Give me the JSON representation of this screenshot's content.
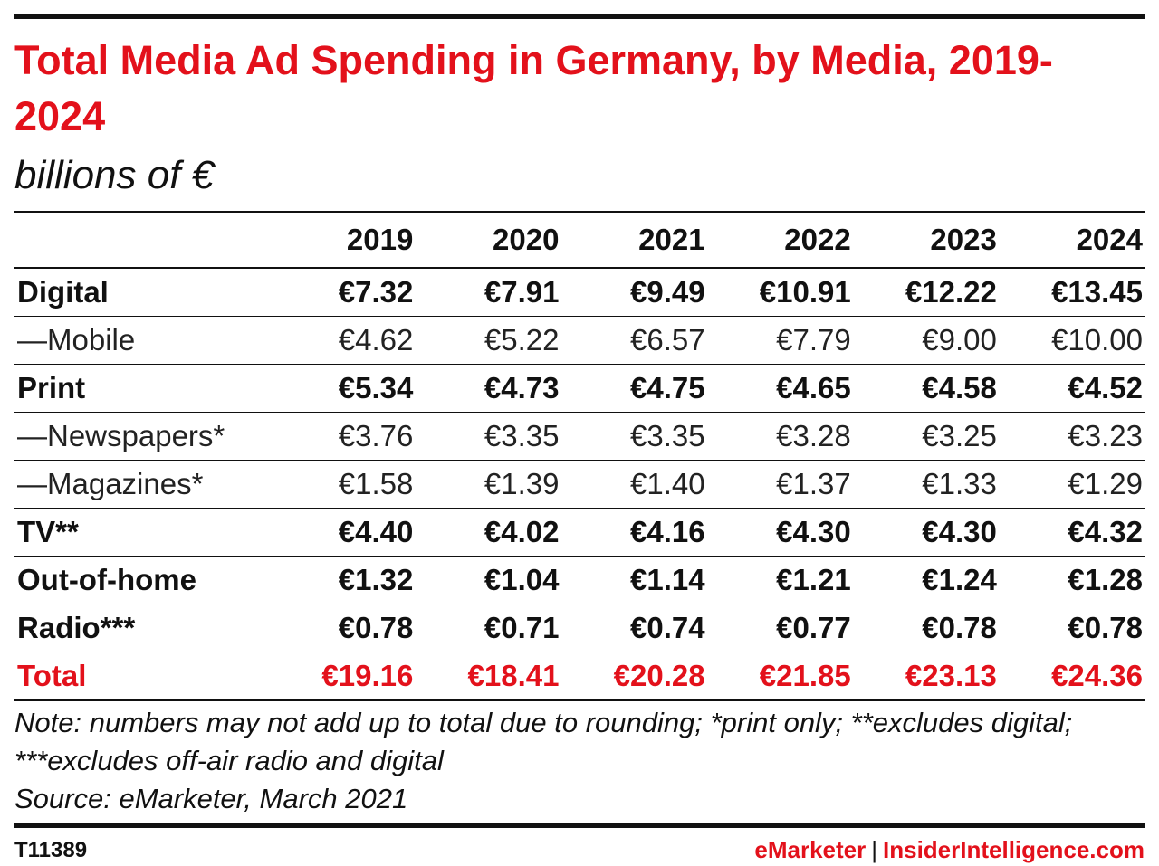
{
  "chart_data": {
    "type": "table",
    "title": "Total Media Ad Spending in Germany, by Media, 2019-2024",
    "subtitle": "billions of €",
    "columns": [
      "2019",
      "2020",
      "2021",
      "2022",
      "2023",
      "2024"
    ],
    "rows": [
      {
        "label": "Digital",
        "style": "bold",
        "values": [
          "€7.32",
          "€7.91",
          "€9.49",
          "€10.91",
          "€12.22",
          "€13.45"
        ]
      },
      {
        "label": "—Mobile",
        "style": "light",
        "values": [
          "€4.62",
          "€5.22",
          "€6.57",
          "€7.79",
          "€9.00",
          "€10.00"
        ]
      },
      {
        "label": "Print",
        "style": "bold",
        "values": [
          "€5.34",
          "€4.73",
          "€4.75",
          "€4.65",
          "€4.58",
          "€4.52"
        ]
      },
      {
        "label": "—Newspapers*",
        "style": "light",
        "values": [
          "€3.76",
          "€3.35",
          "€3.35",
          "€3.28",
          "€3.25",
          "€3.23"
        ]
      },
      {
        "label": "—Magazines*",
        "style": "light",
        "values": [
          "€1.58",
          "€1.39",
          "€1.40",
          "€1.37",
          "€1.33",
          "€1.29"
        ]
      },
      {
        "label": "TV**",
        "style": "bold",
        "values": [
          "€4.40",
          "€4.02",
          "€4.16",
          "€4.30",
          "€4.30",
          "€4.32"
        ]
      },
      {
        "label": "Out-of-home",
        "style": "bold",
        "values": [
          "€1.32",
          "€1.04",
          "€1.14",
          "€1.21",
          "€1.24",
          "€1.28"
        ]
      },
      {
        "label": "Radio***",
        "style": "bold",
        "values": [
          "€0.78",
          "€0.71",
          "€0.74",
          "€0.77",
          "€0.78",
          "€0.78"
        ]
      },
      {
        "label": "Total",
        "style": "total",
        "values": [
          "€19.16",
          "€18.41",
          "€20.28",
          "€21.85",
          "€23.13",
          "€24.36"
        ]
      }
    ]
  },
  "notes": {
    "note": "Note: numbers may not add up to total due to rounding; *print only; **excludes digital; ***excludes off-air radio and digital",
    "source": "Source: eMarketer, March 2021"
  },
  "footer": {
    "id": "T11389",
    "brand_left": "eMarketer",
    "separator": "|",
    "brand_right": "InsiderIntelligence.com"
  },
  "colors": {
    "accent": "#e3111b",
    "text": "#111111"
  }
}
